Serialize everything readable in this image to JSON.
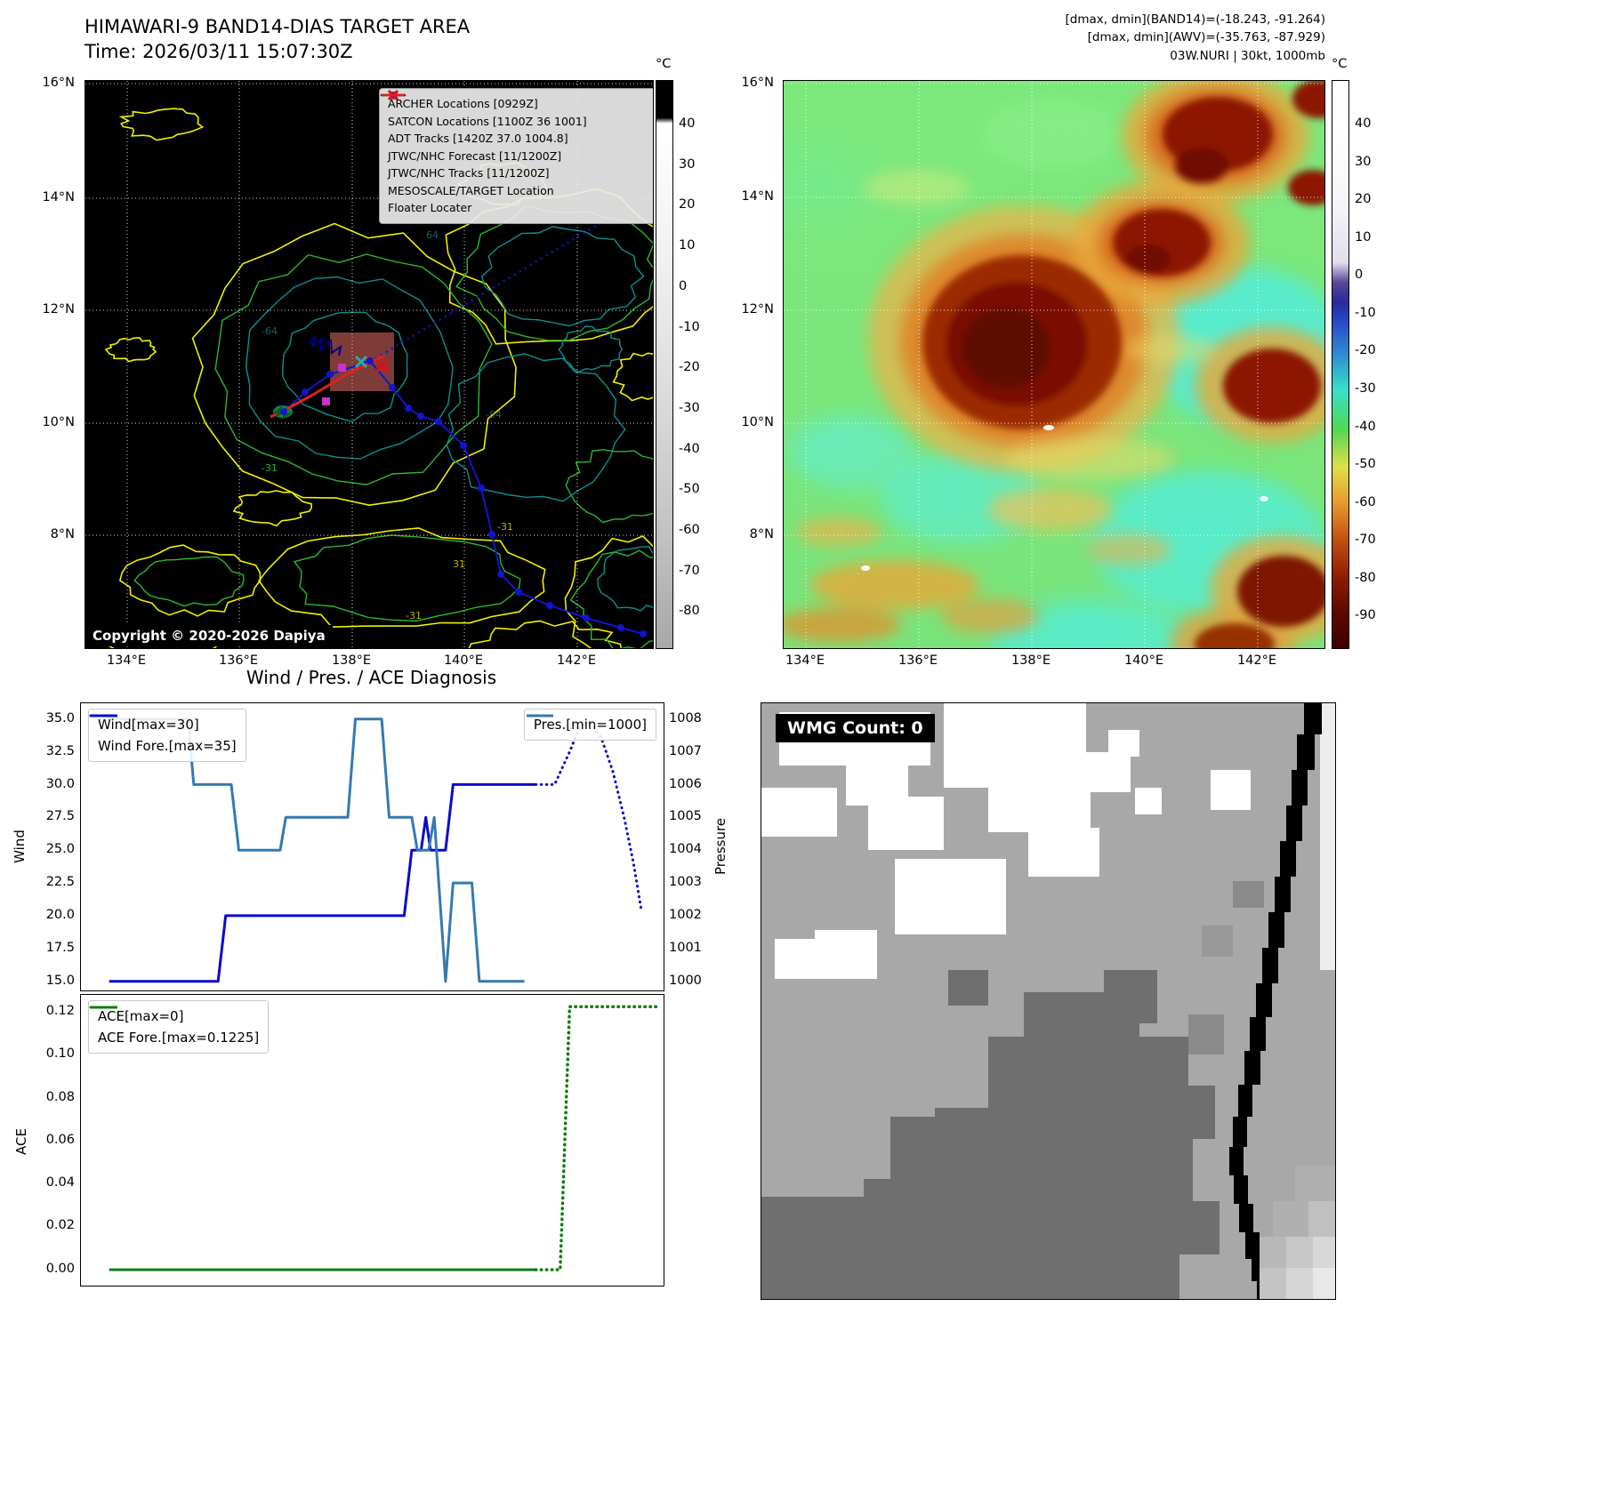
{
  "band14": {
    "title": "HIMAWARI-9 BAND14-DIAS TARGET AREA",
    "time_line": "Time: 2026/03/11 15:07:30Z",
    "copyright": "Copyright © 2020-2026 Dapiya",
    "colorbar_unit": "°C",
    "colorbar_ticks": [
      "40",
      "30",
      "20",
      "10",
      "0",
      "-10",
      "-20",
      "-30",
      "-40",
      "-50",
      "-60",
      "-70",
      "-80"
    ],
    "lat_ticks": [
      "16°N",
      "14°N",
      "12°N",
      "10°N",
      "8°N"
    ],
    "lon_ticks": [
      "134°E",
      "136°E",
      "138°E",
      "140°E",
      "142°E"
    ],
    "legend": [
      {
        "label": "ARCHER Locations [0929Z]",
        "marker": "square",
        "color": "#c23cc2"
      },
      {
        "label": "SATCON Locations [1100Z 36 1001]",
        "marker": "x",
        "color": "#27b0a0"
      },
      {
        "label": "ADT Tracks [1420Z 37.0 1004.8]",
        "marker": "line",
        "color": "#006400"
      },
      {
        "label": "JTWC/NHC Forecast [11/1200Z]",
        "marker": "dotted-line",
        "color": "#1414cc"
      },
      {
        "label": "JTWC/NHC Tracks [11/1200Z]",
        "marker": "line-circle",
        "color": "#1414cc"
      },
      {
        "label": "MESOSCALE/TARGET Location",
        "marker": "x",
        "color": "#e01010"
      },
      {
        "label": "Floater Locater",
        "marker": "line",
        "color": "#e02020"
      }
    ],
    "contour_labels": [
      "-64",
      "64",
      "-54",
      "-31",
      "31",
      "-31",
      "-31"
    ]
  },
  "awv": {
    "header_lines": [
      "[dmax, dmin](BAND14)=(-18.243, -91.264)",
      "[dmax, dmin](AWV)=(-35.763, -87.929)",
      "03W.NURI | 30kt, 1000mb"
    ],
    "colorbar_unit": "°C",
    "colorbar_ticks": [
      "40",
      "30",
      "20",
      "10",
      "0",
      "-10",
      "-20",
      "-30",
      "-40",
      "-50",
      "-60",
      "-70",
      "-80",
      "-90"
    ],
    "lat_ticks": [
      "16°N",
      "14°N",
      "12°N",
      "10°N",
      "8°N"
    ],
    "lon_ticks": [
      "134°E",
      "136°E",
      "138°E",
      "140°E",
      "142°E"
    ]
  },
  "diagnosis": {
    "title": "Wind / Pres. / ACE Diagnosis",
    "wind_axis_label": "Wind",
    "pressure_axis_label": "Pressure",
    "ace_axis_label": "ACE",
    "wind_ticks": [
      "35.0",
      "32.5",
      "30.0",
      "27.5",
      "25.0",
      "22.5",
      "20.0",
      "17.5",
      "15.0"
    ],
    "pressure_ticks": [
      "1008",
      "1007",
      "1006",
      "1005",
      "1004",
      "1003",
      "1002",
      "1001",
      "1000"
    ],
    "ace_ticks": [
      "0.12",
      "0.10",
      "0.08",
      "0.06",
      "0.04",
      "0.02",
      "0.00"
    ],
    "legend_wind": "Wind[max=30]",
    "legend_wind_fore": "Wind Fore.[max=35]",
    "legend_pres": "Pres.[min=1000]",
    "legend_ace": "ACE[max=0]",
    "legend_ace_fore": "ACE Fore.[max=0.1225]"
  },
  "wmg": {
    "count_label": "WMG Count: 0"
  },
  "chart_data": [
    {
      "id": "wind-pres",
      "type": "line",
      "title": "Wind / Pres. / ACE Diagnosis (wind & pressure panel)",
      "xlabel": "",
      "ylabel": "Wind",
      "y2label": "Pressure",
      "xlim": [
        0,
        31
      ],
      "ylim": [
        14.3,
        36.2
      ],
      "y2lim": [
        1000,
        1008
      ],
      "grid": false,
      "legend_position": "upper left / upper right",
      "series": [
        {
          "name": "Wind[max=30]",
          "color": "#0a0acd",
          "style": "solid",
          "width": 3,
          "points": [
            [
              1.5,
              15
            ],
            [
              7.3,
              15
            ],
            [
              7.7,
              20
            ],
            [
              17.2,
              20
            ],
            [
              17.6,
              25
            ],
            [
              18.1,
              25
            ],
            [
              18.35,
              27.5
            ],
            [
              18.6,
              25
            ],
            [
              19.4,
              25
            ],
            [
              19.8,
              30
            ],
            [
              24.2,
              30
            ]
          ]
        },
        {
          "name": "Wind Fore.[max=35]",
          "color": "#0a0acd",
          "style": "dotted",
          "width": 3,
          "points": [
            [
              24.2,
              30
            ],
            [
              25.2,
              30
            ],
            [
              26.0,
              32.5
            ],
            [
              26.6,
              34.6
            ],
            [
              27.1,
              34.8
            ],
            [
              27.7,
              33.5
            ],
            [
              28.3,
              31
            ],
            [
              28.9,
              27.5
            ],
            [
              29.4,
              24
            ],
            [
              29.8,
              20.6
            ]
          ]
        },
        {
          "name": "Pres.[min=1000]",
          "color": "#3579b1",
          "style": "solid",
          "width": 3,
          "axis": "right",
          "map_to_left_axis": {
            "from": [
              1000,
              1008
            ],
            "to": [
              15,
              35
            ]
          },
          "points": [
            [
              1.5,
              1008
            ],
            [
              5.7,
              1008
            ],
            [
              6.0,
              1006
            ],
            [
              8.0,
              1006
            ],
            [
              8.4,
              1004
            ],
            [
              10.6,
              1004
            ],
            [
              10.9,
              1005
            ],
            [
              14.2,
              1005
            ],
            [
              14.6,
              1008
            ],
            [
              16.0,
              1008
            ],
            [
              16.4,
              1005
            ],
            [
              17.6,
              1005
            ],
            [
              17.9,
              1004
            ],
            [
              18.5,
              1004
            ],
            [
              18.8,
              1005
            ],
            [
              19.4,
              1000
            ],
            [
              19.8,
              1003
            ],
            [
              20.8,
              1003
            ],
            [
              21.2,
              1000
            ],
            [
              23.6,
              1000
            ]
          ]
        }
      ]
    },
    {
      "id": "ace",
      "type": "line",
      "title": "ACE panel",
      "xlabel": "",
      "ylabel": "ACE",
      "xlim": [
        0,
        31
      ],
      "ylim": [
        -0.0074,
        0.128
      ],
      "grid": false,
      "series": [
        {
          "name": "ACE[max=0]",
          "color": "#0f7d0f",
          "style": "solid",
          "width": 3,
          "points": [
            [
              1.5,
              0
            ],
            [
              24.2,
              0
            ]
          ]
        },
        {
          "name": "ACE Fore.[max=0.1225]",
          "color": "#0f7d0f",
          "style": "dotted",
          "width": 3.5,
          "points": [
            [
              24.2,
              0
            ],
            [
              25.5,
              0
            ],
            [
              26.0,
              0.1225
            ],
            [
              30.6,
              0.1225
            ]
          ]
        }
      ]
    }
  ]
}
